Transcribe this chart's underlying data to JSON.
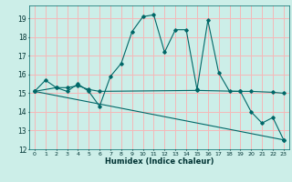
{
  "title": "",
  "xlabel": "Humidex (Indice chaleur)",
  "xlim": [
    -0.5,
    23.5
  ],
  "ylim": [
    12,
    19.7
  ],
  "yticks": [
    12,
    13,
    14,
    15,
    16,
    17,
    18,
    19
  ],
  "xticks": [
    0,
    1,
    2,
    3,
    4,
    5,
    6,
    7,
    8,
    9,
    10,
    11,
    12,
    13,
    14,
    15,
    16,
    17,
    18,
    19,
    20,
    21,
    22,
    23
  ],
  "bg_color": "#cceee8",
  "grid_color": "#f5b8b8",
  "line_color": "#006868",
  "lines": [
    {
      "x": [
        0,
        1,
        2,
        3,
        4,
        5,
        6,
        7,
        8,
        9,
        10,
        11,
        12,
        13,
        14,
        15,
        16,
        17,
        18,
        19,
        20,
        21,
        22,
        23
      ],
      "y": [
        15.1,
        15.7,
        15.3,
        15.1,
        15.5,
        15.1,
        14.3,
        15.9,
        16.6,
        18.3,
        19.1,
        19.2,
        17.2,
        18.4,
        18.4,
        15.2,
        18.9,
        16.1,
        15.1,
        15.1,
        14.0,
        13.4,
        13.7,
        12.5
      ]
    },
    {
      "x": [
        0,
        2,
        3,
        4,
        5,
        6,
        15,
        19,
        20,
        22,
        23
      ],
      "y": [
        15.1,
        15.3,
        15.3,
        15.4,
        15.2,
        15.1,
        15.15,
        15.1,
        15.1,
        15.05,
        15.0
      ]
    },
    {
      "x": [
        0,
        23
      ],
      "y": [
        15.1,
        12.5
      ]
    }
  ]
}
